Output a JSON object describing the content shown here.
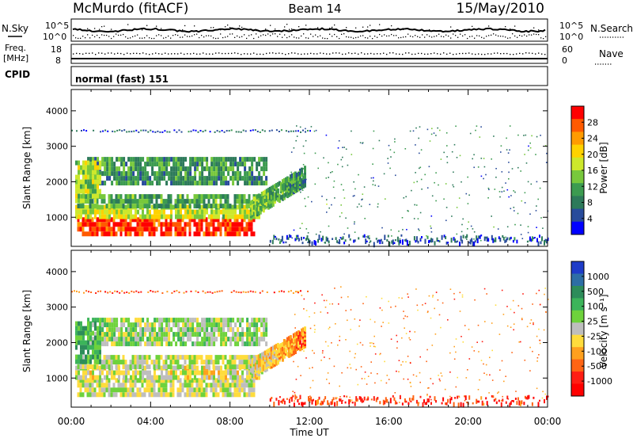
{
  "header": {
    "radar": "McMurdo (fitACF)",
    "beam": "Beam 14",
    "date": "15/May/2010"
  },
  "aux_panels": {
    "nsky_label": "N.Sky",
    "nsearch_label": "N.Search",
    "nsky_ticks": [
      "10^5",
      "10^0"
    ],
    "nsearch_ticks": [
      "10^5",
      "10^0"
    ],
    "freq_label": "Freq.",
    "freq_unit": "[MHz]",
    "freq_ticks": [
      "18",
      "8"
    ],
    "nave_label": "Nave",
    "nave_ticks": [
      "60",
      "0"
    ],
    "cpid_label": "CPID",
    "cpid_value": "normal (fast) 151"
  },
  "chart_data": [
    {
      "type": "heatmap",
      "name": "power",
      "ylabel": "Slant Range [km]",
      "yticks": [
        1000,
        2000,
        3000,
        4000
      ],
      "ylim": [
        180,
        4600
      ],
      "xlim": [
        0,
        24
      ],
      "colorbar_label": "Power [dB]",
      "colorbar_ticks": [
        "28",
        "24",
        "20",
        "16",
        "12",
        "8",
        "4"
      ],
      "colorbar_colors": [
        "#ff0000",
        "#ff5a00",
        "#ff9b00",
        "#ffd200",
        "#cde82c",
        "#78c83c",
        "#3c9b50",
        "#2d7a5a",
        "#284b9b",
        "#0000ff"
      ],
      "regions": [
        {
          "t0": 0.3,
          "t1": 9.2,
          "r0": 550,
          "r1": 1000,
          "level": 0.95
        },
        {
          "t0": 0.2,
          "t1": 9.5,
          "r0": 1000,
          "r1": 1350,
          "level": 0.55
        },
        {
          "t0": 0.3,
          "t1": 10.0,
          "r0": 1350,
          "r1": 1650,
          "level": 0.35
        },
        {
          "t0": 0.8,
          "t1": 9.8,
          "r0": 1900,
          "r1": 2700,
          "level": 0.3
        },
        {
          "t0": 0.2,
          "t1": 1.5,
          "r0": 1500,
          "r1": 2600,
          "level": 0.5
        }
      ],
      "tail": {
        "t0": 9.0,
        "t1": 11.8,
        "r_start": 1300,
        "r_end": 2250
      },
      "sparse_band_km": 3450,
      "ground_band_km": 300
    },
    {
      "type": "heatmap",
      "name": "velocity",
      "ylabel": "Slant Range [km]",
      "yticks": [
        1000,
        2000,
        3000,
        4000
      ],
      "ylim": [
        180,
        4600
      ],
      "xlim": [
        0,
        24
      ],
      "colorbar_label": "Velocity [m s⁻¹]",
      "colorbar_ticks": [
        "1000",
        "500",
        "100",
        "25",
        "-25",
        "-100",
        "-500",
        "-1000"
      ],
      "colorbar_colors": [
        "#1e3cc8",
        "#2d6ea5",
        "#2d8c5a",
        "#3cb45a",
        "#6ed23c",
        "#bebebe",
        "#ffdc3c",
        "#ffa01e",
        "#ff6414",
        "#ff1e14",
        "#ff0000"
      ],
      "regions": [
        {
          "t0": 0.3,
          "t1": 9.2,
          "r0": 550,
          "r1": 1000,
          "level": 0.5
        },
        {
          "t0": 0.2,
          "t1": 9.5,
          "r0": 1000,
          "r1": 1350,
          "level": 0.45
        },
        {
          "t0": 0.3,
          "t1": 10.0,
          "r0": 1350,
          "r1": 1650,
          "level": 0.5
        },
        {
          "t0": 0.8,
          "t1": 9.8,
          "r0": 1900,
          "r1": 2700,
          "level": 0.55
        },
        {
          "t0": 0.2,
          "t1": 1.5,
          "r0": 1500,
          "r1": 2600,
          "level": 0.7
        }
      ],
      "tail": {
        "t0": 9.0,
        "t1": 11.8,
        "r_start": 1300,
        "r_end": 2250
      },
      "sparse_band_km": 3450,
      "ground_band_km": 300
    }
  ],
  "xaxis": {
    "label": "Time UT",
    "ticks": [
      "00:00",
      "04:00",
      "08:00",
      "12:00",
      "16:00",
      "20:00",
      "00:00"
    ]
  }
}
